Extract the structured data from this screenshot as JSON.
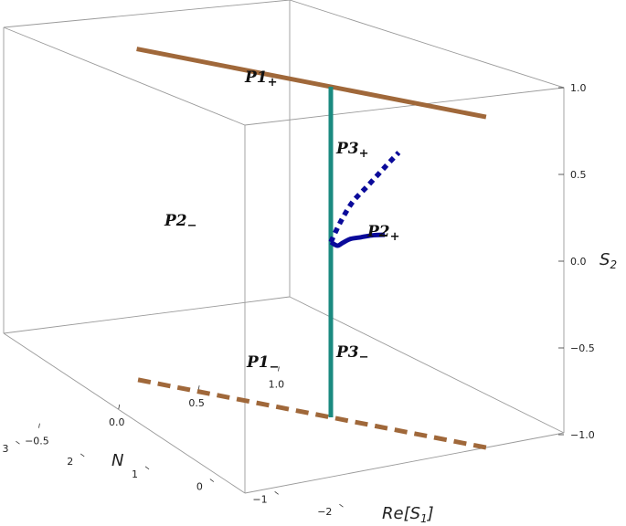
{
  "chart_data": {
    "type": "line",
    "title": "",
    "axes": {
      "x": {
        "label": "N",
        "range": [
          -2,
          3
        ],
        "ticks": [
          -2,
          -1,
          0,
          1,
          2,
          3
        ],
        "tick_labels": [
          "−2",
          "−1",
          "0",
          "1",
          "2",
          "3"
        ]
      },
      "y": {
        "label_main": "Re[S",
        "label_sub": "1",
        "label_end": "]",
        "range": [
          -1.0,
          1.0
        ],
        "ticks": [
          -1.0,
          -0.5,
          0.0,
          0.5,
          1.0
        ],
        "tick_labels": [
          "−1.0",
          "−0.5",
          "0.0",
          "0.5",
          "1.0"
        ]
      },
      "z": {
        "label_main": "S",
        "label_sub": "2",
        "range": [
          -1.0,
          1.0
        ],
        "ticks": [
          -1.0,
          -0.5,
          0.0,
          0.5,
          1.0
        ],
        "tick_labels": [
          "−1.0",
          "−0.5",
          "0.0",
          "0.5",
          "1.0"
        ]
      }
    },
    "series": [
      {
        "name": "P1",
        "sign": "+",
        "color": "#a0683a",
        "style": "solid",
        "points": [
          [
            -2.4,
            0.0,
            1.0
          ],
          [
            3.0,
            0.0,
            1.0
          ]
        ]
      },
      {
        "name": "P1",
        "sign": "−",
        "color": "#a0683a",
        "style": "dashed",
        "points": [
          [
            -2.4,
            0.0,
            -1.0
          ],
          [
            3.0,
            0.0,
            -1.0
          ]
        ]
      },
      {
        "name": "P3",
        "sign": "+",
        "color": "#1b8a80",
        "style": "solid",
        "points": [
          [
            0.0,
            0.0,
            0.0
          ],
          [
            0.0,
            0.0,
            1.0
          ]
        ]
      },
      {
        "name": "P3",
        "sign": "−",
        "color": "#1b8a80",
        "style": "solid",
        "points": [
          [
            0.0,
            0.0,
            -1.0
          ],
          [
            0.0,
            0.0,
            0.0
          ]
        ]
      },
      {
        "name": "P2",
        "sign": "−",
        "color": "#0a0a9a",
        "style": "solid",
        "points": [
          [
            -2.5,
            -1.0,
            0.45
          ],
          [
            -2.0,
            -0.82,
            0.38
          ],
          [
            -1.5,
            -0.62,
            0.3
          ],
          [
            -1.0,
            -0.42,
            0.22
          ],
          [
            -0.6,
            -0.25,
            0.14
          ],
          [
            -0.3,
            -0.12,
            0.08
          ],
          [
            0.0,
            0.0,
            0.06
          ]
        ]
      },
      {
        "name": "P2",
        "sign": "+",
        "color": "#0a0a9a",
        "style": "dotted",
        "points": [
          [
            0.0,
            0.0,
            0.06
          ],
          [
            0.05,
            0.12,
            0.16
          ],
          [
            0.0,
            0.2,
            0.27
          ],
          [
            -0.2,
            0.22,
            0.38
          ],
          [
            -0.5,
            0.2,
            0.52
          ],
          [
            -0.8,
            0.15,
            0.64
          ]
        ]
      }
    ],
    "annotations": [
      {
        "main": "P1",
        "sub": "+"
      },
      {
        "main": "P1",
        "sub": "−"
      },
      {
        "main": "P2",
        "sub": "−"
      },
      {
        "main": "P2",
        "sub": "+"
      },
      {
        "main": "P3",
        "sub": "+"
      },
      {
        "main": "P3",
        "sub": "−"
      }
    ],
    "grid": false,
    "legend": "none"
  }
}
